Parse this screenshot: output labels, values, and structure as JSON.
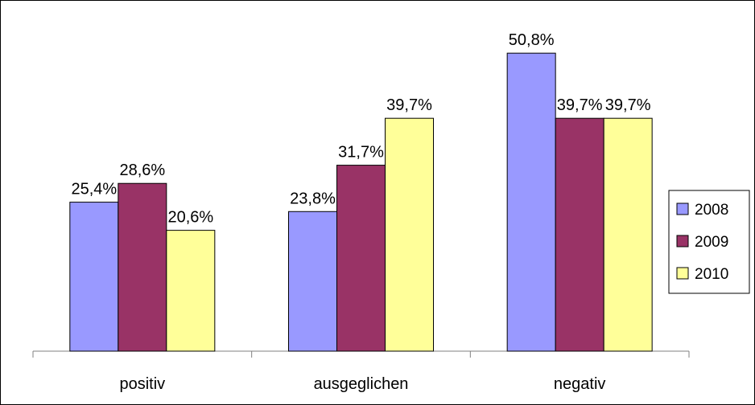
{
  "chart_data": {
    "type": "bar",
    "title": "",
    "xlabel": "",
    "ylabel": "",
    "ylim": [
      0,
      55
    ],
    "grid": false,
    "legend_position": "right",
    "categories": [
      "positiv",
      "ausgeglichen",
      "negativ"
    ],
    "series": [
      {
        "name": "2008",
        "color": "#9999ff",
        "values": [
          25.4,
          23.8,
          50.8
        ],
        "labels": [
          "25,4%",
          "23,8%",
          "50,8%"
        ]
      },
      {
        "name": "2009",
        "color": "#993366",
        "values": [
          28.6,
          31.7,
          39.7
        ],
        "labels": [
          "28,6%",
          "31,7%",
          "39,7%"
        ]
      },
      {
        "name": "2010",
        "color": "#ffff99",
        "values": [
          20.6,
          39.7,
          39.7
        ],
        "labels": [
          "20,6%",
          "39,7%",
          "39,7%"
        ]
      }
    ]
  }
}
